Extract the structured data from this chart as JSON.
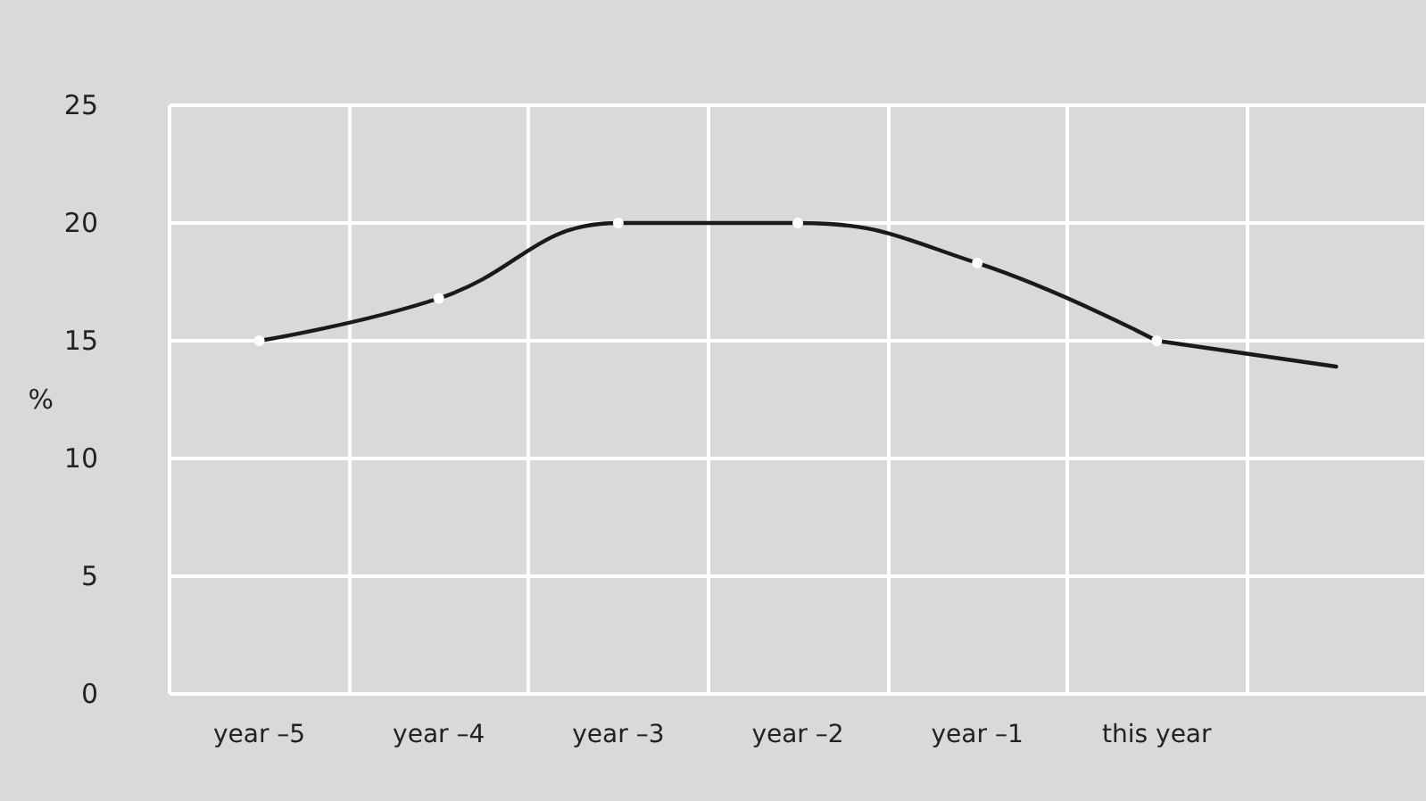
{
  "chart_data": {
    "type": "line",
    "ylabel": "%",
    "categories": [
      "year –5",
      "year –4",
      "year –3",
      "year –2",
      "year –1",
      "this year",
      null
    ],
    "series": [
      {
        "color": "#1a1a1a",
        "values": [
          15,
          16.8,
          20,
          20,
          18.3,
          15,
          null
        ],
        "marker": "circle"
      },
      {
        "color": "#1a1a1a",
        "values": [
          null,
          null,
          null,
          null,
          null,
          15,
          13.9
        ]
      }
    ],
    "ylim": [
      0,
      25
    ],
    "yticks": [
      0,
      5,
      10,
      15,
      20,
      25
    ],
    "grid": true,
    "line_style": "solid"
  }
}
